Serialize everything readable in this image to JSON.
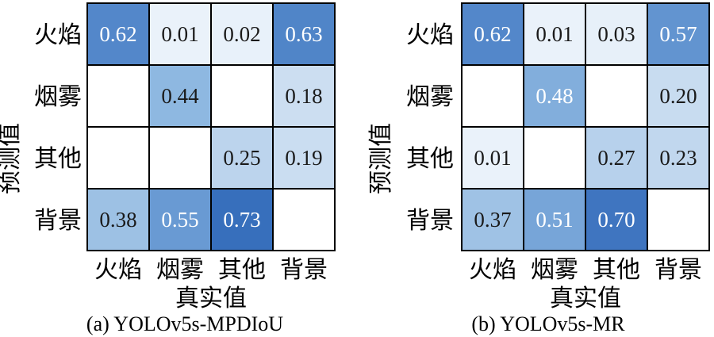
{
  "chart_data": [
    {
      "type": "heatmap",
      "title": "(a) YOLOv5s-MPDIoU",
      "xlabel": "真实值",
      "ylabel": "预测值",
      "x_categories": [
        "火焰",
        "烟雾",
        "其他",
        "背景"
      ],
      "y_categories": [
        "火焰",
        "烟雾",
        "其他",
        "背景"
      ],
      "values": [
        [
          0.62,
          0.01,
          0.02,
          0.63
        ],
        [
          null,
          0.44,
          null,
          0.18
        ],
        [
          null,
          null,
          0.25,
          0.19
        ],
        [
          0.38,
          0.55,
          0.73,
          null
        ]
      ],
      "labels": [
        [
          "0.62",
          "0.01",
          "0.02",
          "0.63"
        ],
        [
          "",
          "0.44",
          "",
          "0.18"
        ],
        [
          "",
          "",
          "0.25",
          "0.19"
        ],
        [
          "0.38",
          "0.55",
          "0.73",
          ""
        ]
      ],
      "colormap": "blues"
    },
    {
      "type": "heatmap",
      "title": "(b) YOLOv5s-MR",
      "xlabel": "真实值",
      "ylabel": "预测值",
      "x_categories": [
        "火焰",
        "烟雾",
        "其他",
        "背景"
      ],
      "y_categories": [
        "火焰",
        "烟雾",
        "其他",
        "背景"
      ],
      "values": [
        [
          0.62,
          0.01,
          0.03,
          0.57
        ],
        [
          null,
          0.48,
          null,
          0.2
        ],
        [
          0.01,
          null,
          0.27,
          0.23
        ],
        [
          0.37,
          0.51,
          0.7,
          null
        ]
      ],
      "labels": [
        [
          "0.62",
          "0.01",
          "0.03",
          "0.57"
        ],
        [
          "",
          "0.48",
          "",
          "0.20"
        ],
        [
          "0.01",
          "",
          "0.27",
          "0.23"
        ],
        [
          "0.37",
          "0.51",
          "0.70",
          ""
        ]
      ],
      "colormap": "blues"
    }
  ]
}
